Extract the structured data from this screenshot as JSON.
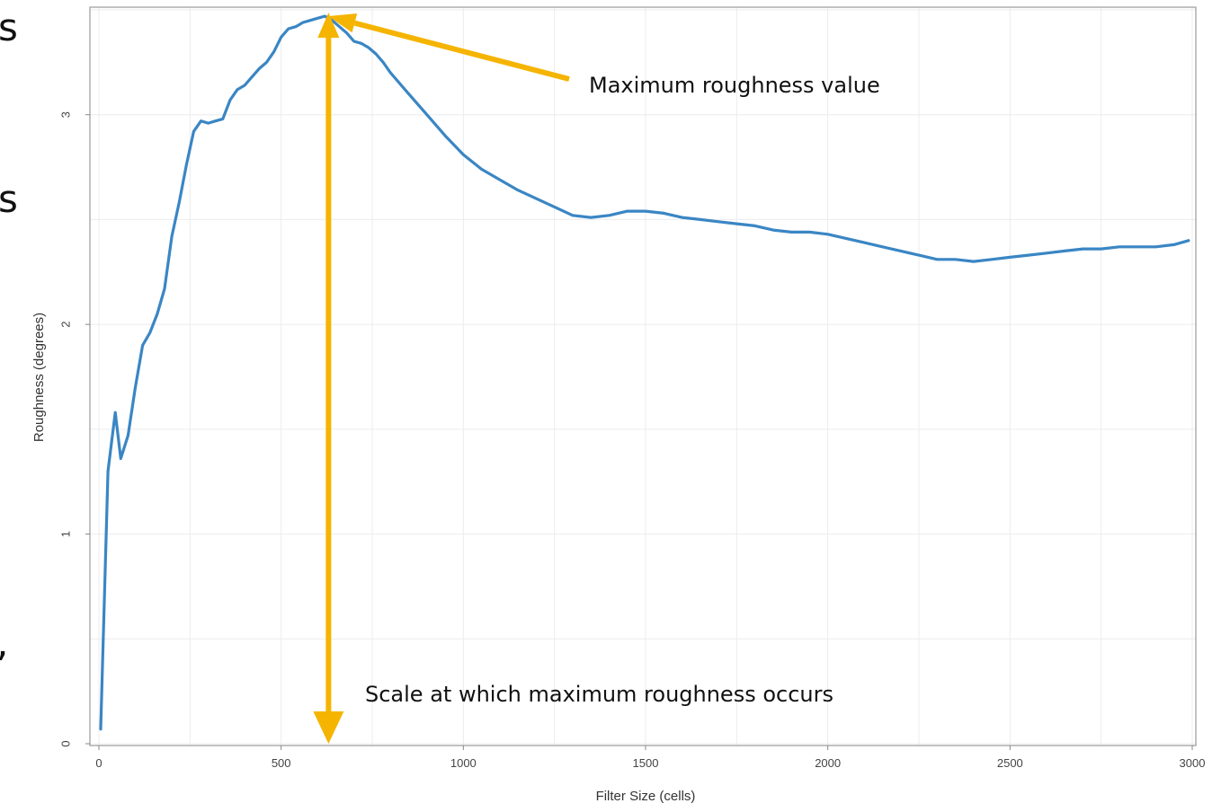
{
  "left_edge_fragments": [
    "s",
    "s",
    ","
  ],
  "chart_data": {
    "type": "line",
    "xlabel": "Filter Size (cells)",
    "ylabel": "Roughness (degrees)",
    "xlim": [
      0,
      3000
    ],
    "ylim": [
      0,
      3.5
    ],
    "x_ticks": [
      0,
      500,
      1000,
      1500,
      2000,
      2500,
      3000
    ],
    "y_ticks": [
      0,
      1,
      2,
      3
    ],
    "grid": true,
    "series": [
      {
        "color": "#3a86c4",
        "x": [
          5,
          25,
          45,
          60,
          80,
          100,
          120,
          140,
          160,
          180,
          200,
          220,
          240,
          260,
          280,
          300,
          320,
          340,
          360,
          380,
          400,
          420,
          440,
          460,
          480,
          500,
          520,
          540,
          560,
          580,
          600,
          620,
          640,
          660,
          680,
          700,
          720,
          740,
          760,
          780,
          800,
          850,
          900,
          950,
          1000,
          1050,
          1100,
          1150,
          1200,
          1250,
          1300,
          1350,
          1400,
          1450,
          1500,
          1550,
          1600,
          1650,
          1700,
          1750,
          1800,
          1850,
          1900,
          1950,
          2000,
          2050,
          2100,
          2150,
          2200,
          2250,
          2300,
          2350,
          2400,
          2450,
          2500,
          2550,
          2600,
          2650,
          2700,
          2750,
          2800,
          2850,
          2900,
          2950,
          2990
        ],
        "y": [
          0.07,
          1.3,
          1.58,
          1.36,
          1.47,
          1.7,
          1.9,
          1.96,
          2.05,
          2.17,
          2.42,
          2.58,
          2.76,
          2.92,
          2.97,
          2.96,
          2.97,
          2.98,
          3.07,
          3.12,
          3.14,
          3.18,
          3.22,
          3.25,
          3.3,
          3.37,
          3.41,
          3.42,
          3.44,
          3.45,
          3.46,
          3.47,
          3.45,
          3.42,
          3.39,
          3.35,
          3.34,
          3.32,
          3.29,
          3.25,
          3.2,
          3.1,
          3.0,
          2.9,
          2.81,
          2.74,
          2.69,
          2.64,
          2.6,
          2.56,
          2.52,
          2.51,
          2.52,
          2.54,
          2.54,
          2.53,
          2.51,
          2.5,
          2.49,
          2.48,
          2.47,
          2.45,
          2.44,
          2.44,
          2.43,
          2.41,
          2.39,
          2.37,
          2.35,
          2.33,
          2.31,
          2.31,
          2.3,
          2.31,
          2.32,
          2.33,
          2.34,
          2.35,
          2.36,
          2.36,
          2.37,
          2.37,
          2.37,
          2.38,
          2.4
        ]
      }
    ],
    "annotations": [
      {
        "text": "Maximum roughness value",
        "points_to": "peak",
        "color": "#f5b400"
      },
      {
        "text": "Scale at which maximum roughness occurs",
        "points_to": "x-axis",
        "color": "#f5b400"
      }
    ],
    "peak": {
      "x": 630,
      "y": 3.47
    }
  }
}
